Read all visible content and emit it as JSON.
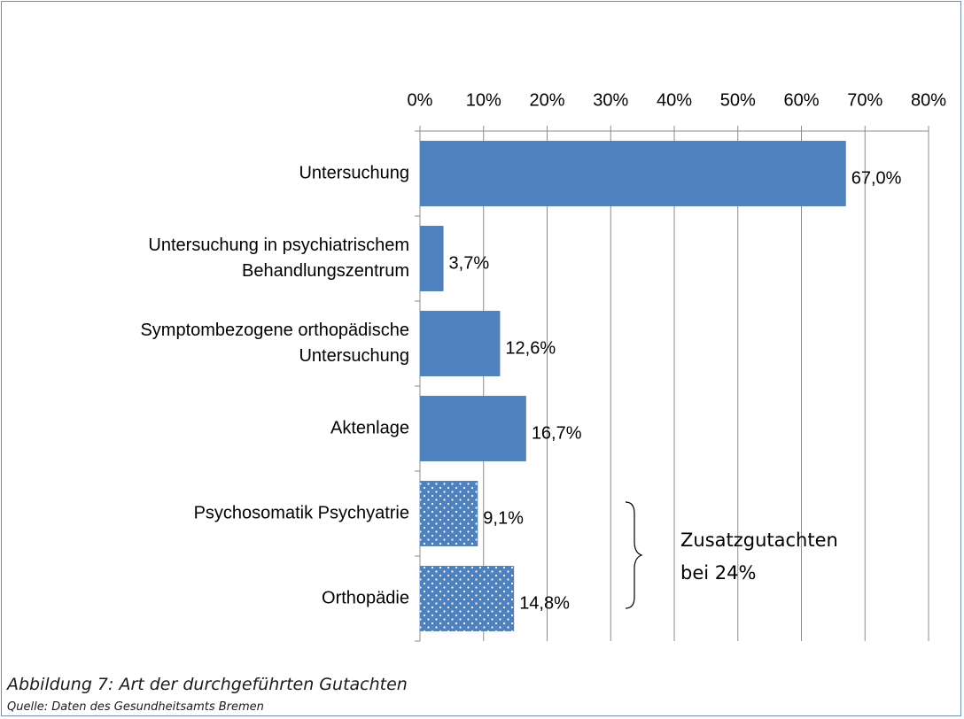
{
  "chart_data": {
    "type": "bar",
    "orientation": "horizontal",
    "categories": [
      "Untersuchung",
      "Untersuchung in  psychiatrischem\nBehandlungszentrum",
      "Symptombezogene orthopädische\nUntersuchung",
      "Aktenlage",
      "Psychosomatik Psychyatrie",
      "Orthopädie"
    ],
    "values": [
      67.0,
      3.7,
      12.6,
      16.7,
      9.1,
      14.8
    ],
    "value_labels": [
      "67,0%",
      "3,7%",
      "12,6%",
      "16,7%",
      "9,1%",
      "14,8%"
    ],
    "fill_styles": [
      "solid",
      "solid",
      "solid",
      "solid",
      "dotted",
      "dotted"
    ],
    "color": "#4f81bd",
    "xlim": [
      0,
      80
    ],
    "xticks": [
      {
        "value": 0,
        "label": "0%"
      },
      {
        "value": 10,
        "label": "10%"
      },
      {
        "value": 20,
        "label": "20%"
      },
      {
        "value": 30,
        "label": "30%"
      },
      {
        "value": 40,
        "label": "40%"
      },
      {
        "value": 50,
        "label": "50%"
      },
      {
        "value": 60,
        "label": "60%"
      },
      {
        "value": 70,
        "label": "70%"
      },
      {
        "value": 80,
        "label": "80%"
      }
    ],
    "x_axis_position": "top",
    "grid": true,
    "annotation": "Zusatzgutachten\nbei 24%",
    "caption": "Abbildung 7: Art der durchgeführten Gutachten",
    "source": "Quelle: Daten des Gesundheitsamts Bremen"
  }
}
